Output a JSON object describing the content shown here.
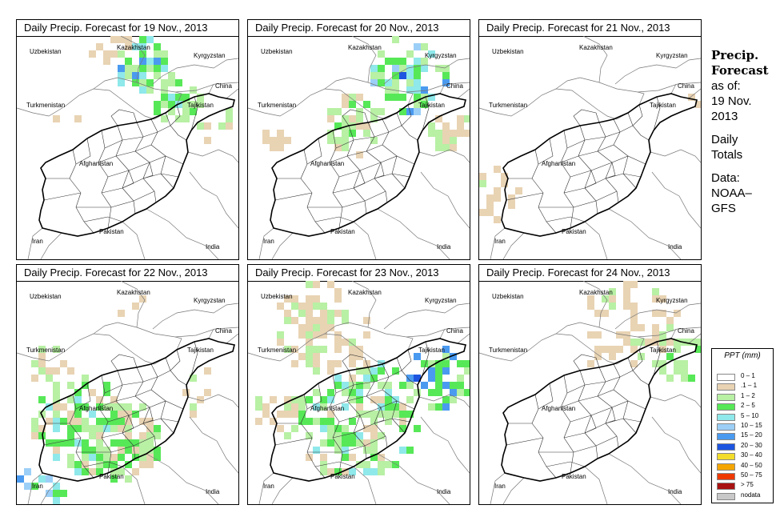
{
  "panels": [
    {
      "title": "Daily Precip. Forecast for  19 Nov., 2013",
      "pattern": "north"
    },
    {
      "title": "Daily Precip. Forecast for  20 Nov., 2013",
      "pattern": "northeast"
    },
    {
      "title": "Daily Precip. Forecast for  21 Nov., 2013",
      "pattern": "dry"
    },
    {
      "title": "Daily Precip. Forecast for  22 Nov., 2013",
      "pattern": "west"
    },
    {
      "title": "Daily Precip. Forecast for  23 Nov., 2013",
      "pattern": "wide"
    },
    {
      "title": "Daily Precip. Forecast for  24 Nov., 2013",
      "pattern": "light"
    }
  ],
  "map_labels": {
    "kazakhstan": "Kazakhstan",
    "uzbekistan": "Uzbekistan",
    "kyrgyzstan": "Kyrgyzstan",
    "china": "China",
    "turkmenistan": "Turkmenistan",
    "tajikistan": "Tajikistan",
    "afghanistan": "Afghanistan",
    "pakistan": "Pakistan",
    "iran": "Iran",
    "india": "India"
  },
  "sidebar": {
    "heading_line1": "Precip.",
    "heading_line2": "Forecast",
    "asof": "as of:",
    "date_line1": "19 Nov.",
    "date_line2": "2013",
    "daily_line1": "Daily",
    "daily_line2": "Totals",
    "data_line1": "Data:",
    "data_line2": "NOAA–",
    "data_line3": "GFS"
  },
  "legend": {
    "title": "PPT (mm)",
    "items": [
      {
        "label": "0 – 1",
        "color": "#ffffff"
      },
      {
        "label": ".1 – 1",
        "color": "#e8d3b3"
      },
      {
        "label": "1 – 2",
        "color": "#b8f0a4"
      },
      {
        "label": "2 – 5",
        "color": "#57e857"
      },
      {
        "label": "5 – 10",
        "color": "#8fe8ea"
      },
      {
        "label": "10 – 15",
        "color": "#9ccff7"
      },
      {
        "label": "15 – 20",
        "color": "#4a9af0"
      },
      {
        "label": "20 – 30",
        "color": "#1d55e0"
      },
      {
        "label": "30 – 40",
        "color": "#f3dc2a"
      },
      {
        "label": "40 – 50",
        "color": "#f5a500"
      },
      {
        "label": "50 – 75",
        "color": "#ee3a00"
      },
      {
        "label": "> 75",
        "color": "#a81212"
      },
      {
        "label": "nodata",
        "color": "#c8c8c8"
      }
    ]
  }
}
